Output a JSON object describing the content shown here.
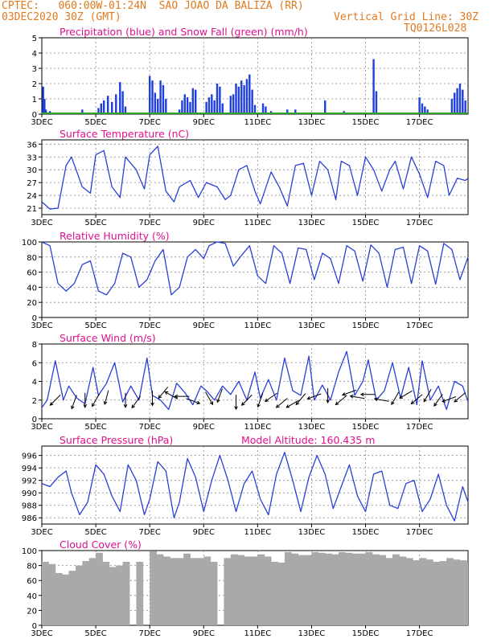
{
  "header": {
    "line1_left": "CPTEC:   060:00W-01:24N  SAO JOAO DA BALIZA (RR)",
    "line2_left": "03DEC2020 30Z (GMT)",
    "line2_right": "Vertical Grid Line: 30Z",
    "line3_right": "TQ0126L028",
    "model_altitude": "Model Altitude: 160.435 m"
  },
  "colors": {
    "header_text": "#e07a1f",
    "panel_title": "#e0108f",
    "precip": "#1f3fdc",
    "snow": "#2aa32a",
    "line": "#2a3fd8",
    "arrow": "#000000",
    "cloud": "#a9a9a9"
  },
  "x_axis": {
    "ticks": [
      "3DEC",
      "5DEC",
      "7DEC",
      "9DEC",
      "11DEC",
      "13DEC",
      "15DEC",
      "17DEC"
    ],
    "tick_days": [
      0,
      2,
      4,
      6,
      8,
      10,
      12,
      14
    ],
    "range_days": [
      0,
      15.8
    ]
  },
  "chart_data": [
    {
      "id": "precip",
      "type": "bar",
      "title": "Precipitation (blue) and Snow Fall (green) (mm/h)",
      "ylim": [
        0,
        5
      ],
      "yticks": [
        0,
        1,
        2,
        3,
        4,
        5
      ],
      "unit": "mm/h",
      "series": [
        {
          "name": "Precipitation",
          "x_days": [
            0.05,
            0.1,
            0.15,
            0.3,
            1.5,
            2.1,
            2.2,
            2.3,
            2.45,
            2.6,
            2.75,
            2.9,
            3.0,
            3.1,
            4.0,
            4.1,
            4.2,
            4.3,
            4.4,
            4.5,
            4.6,
            5.1,
            5.2,
            5.3,
            5.4,
            5.5,
            5.6,
            5.7,
            6.1,
            6.2,
            6.3,
            6.4,
            6.5,
            6.6,
            6.7,
            7.0,
            7.1,
            7.2,
            7.3,
            7.4,
            7.5,
            7.6,
            7.7,
            7.8,
            7.9,
            8.2,
            8.3,
            8.5,
            9.1,
            9.2,
            9.4,
            10.5,
            11.2,
            11.5,
            12.3,
            12.4,
            14.0,
            14.1,
            14.2,
            14.3,
            15.2,
            15.3,
            15.4,
            15.5,
            15.6,
            15.7
          ],
          "values": [
            1.8,
            1.0,
            0.3,
            0.2,
            0.3,
            0.4,
            0.7,
            0.9,
            1.2,
            0.8,
            1.3,
            2.1,
            1.5,
            0.5,
            2.5,
            2.2,
            1.4,
            1.0,
            2.2,
            1.9,
            1.0,
            0.3,
            0.9,
            1.3,
            1.1,
            0.8,
            1.7,
            1.6,
            0.8,
            1.1,
            1.3,
            0.9,
            2.0,
            1.8,
            0.7,
            1.2,
            1.3,
            2.0,
            1.8,
            2.2,
            1.9,
            2.3,
            2.6,
            1.6,
            0.6,
            0.7,
            0.5,
            0.2,
            0.3,
            0.1,
            0.3,
            0.9,
            0.2,
            0.1,
            3.6,
            1.5,
            1.1,
            0.7,
            0.5,
            0.3,
            1.0,
            1.4,
            1.7,
            2.0,
            1.6,
            0.9
          ]
        },
        {
          "name": "Snow Fall",
          "x_days": [
            0,
            15.8
          ],
          "values": [
            0,
            0
          ]
        }
      ]
    },
    {
      "id": "temp",
      "type": "line",
      "title": "Surface Temperature (nC)",
      "ylim": [
        19.5,
        37
      ],
      "yticks": [
        21,
        24,
        27,
        30,
        33,
        36
      ],
      "series": [
        {
          "name": "Surface Temperature",
          "x_days": [
            0,
            0.3,
            0.6,
            0.9,
            1.1,
            1.5,
            1.8,
            2.0,
            2.3,
            2.6,
            2.9,
            3.1,
            3.5,
            3.8,
            4.0,
            4.3,
            4.6,
            4.9,
            5.1,
            5.5,
            5.8,
            6.1,
            6.5,
            6.8,
            7.0,
            7.3,
            7.6,
            7.9,
            8.1,
            8.5,
            8.8,
            9.1,
            9.4,
            9.7,
            10.0,
            10.3,
            10.6,
            10.9,
            11.1,
            11.4,
            11.7,
            12.0,
            12.3,
            12.6,
            12.9,
            13.1,
            13.4,
            13.7,
            14.0,
            14.3,
            14.6,
            14.9,
            15.1,
            15.4,
            15.7,
            15.8
          ],
          "values": [
            22.5,
            20.8,
            21,
            31,
            33,
            26,
            24.5,
            33.5,
            34.5,
            26,
            23.5,
            33,
            30,
            25.5,
            33.5,
            35.5,
            25,
            22.5,
            26,
            27.5,
            23.5,
            27,
            26,
            23,
            24,
            30,
            31,
            25,
            22,
            29.5,
            26,
            21.5,
            31,
            31.5,
            24,
            32,
            30,
            23,
            32,
            31,
            24,
            33,
            30,
            25,
            30,
            32,
            25.5,
            33,
            29,
            23.5,
            32,
            31,
            24,
            28,
            27.5,
            28
          ]
        }
      ]
    },
    {
      "id": "rh",
      "type": "line",
      "title": "Relative Humidity (%)",
      "ylim": [
        0,
        100
      ],
      "yticks": [
        0,
        20,
        40,
        60,
        80,
        100
      ],
      "series": [
        {
          "name": "Relative Humidity",
          "x_days": [
            0,
            0.3,
            0.6,
            0.9,
            1.2,
            1.5,
            1.8,
            2.1,
            2.4,
            2.7,
            3.0,
            3.3,
            3.6,
            3.9,
            4.2,
            4.5,
            4.8,
            5.1,
            5.4,
            5.7,
            6.0,
            6.2,
            6.5,
            6.8,
            7.1,
            7.4,
            7.7,
            8.0,
            8.3,
            8.6,
            8.9,
            9.2,
            9.5,
            9.8,
            10.1,
            10.4,
            10.7,
            11.0,
            11.3,
            11.6,
            11.9,
            12.2,
            12.5,
            12.8,
            13.1,
            13.4,
            13.7,
            14.0,
            14.3,
            14.6,
            14.9,
            15.2,
            15.5,
            15.8
          ],
          "values": [
            100,
            95,
            45,
            35,
            45,
            70,
            75,
            35,
            30,
            45,
            85,
            80,
            40,
            50,
            75,
            90,
            30,
            40,
            80,
            90,
            78,
            95,
            100,
            98,
            68,
            82,
            95,
            55,
            45,
            95,
            85,
            45,
            92,
            90,
            50,
            85,
            78,
            45,
            95,
            88,
            48,
            96,
            85,
            40,
            90,
            93,
            45,
            95,
            88,
            44,
            98,
            90,
            50,
            80
          ]
        }
      ]
    },
    {
      "id": "wind",
      "type": "line",
      "title": "Surface Wind (m/s)",
      "ylim": [
        0,
        8
      ],
      "yticks": [
        0,
        2,
        4,
        6,
        8
      ],
      "series": [
        {
          "name": "Surface Wind",
          "x_days": [
            0,
            0.2,
            0.5,
            0.8,
            1.0,
            1.3,
            1.6,
            1.9,
            2.1,
            2.4,
            2.7,
            3.0,
            3.3,
            3.6,
            3.9,
            4.1,
            4.4,
            4.7,
            5.0,
            5.3,
            5.6,
            5.9,
            6.1,
            6.4,
            6.7,
            7.0,
            7.3,
            7.6,
            7.9,
            8.1,
            8.4,
            8.7,
            9.0,
            9.3,
            9.6,
            9.9,
            10.1,
            10.4,
            10.7,
            11.0,
            11.3,
            11.6,
            11.9,
            12.1,
            12.4,
            12.7,
            13.0,
            13.3,
            13.6,
            13.9,
            14.1,
            14.4,
            14.7,
            15.0,
            15.3,
            15.6,
            15.8
          ],
          "values": [
            1.2,
            2.0,
            6.2,
            2.0,
            3.5,
            2.2,
            1.6,
            5.5,
            2.5,
            3.8,
            6.0,
            1.8,
            3.5,
            2.0,
            6.5,
            2.5,
            2.0,
            1.0,
            3.8,
            2.8,
            1.5,
            3.5,
            3.0,
            2.0,
            3.5,
            2.6,
            4.0,
            2.0,
            5.0,
            2.2,
            4.2,
            2.0,
            6.5,
            3.0,
            2.5,
            6.7,
            2.0,
            3.6,
            2.0,
            5.0,
            7.2,
            2.5,
            4.0,
            6.3,
            2.0,
            3.0,
            6.0,
            2.2,
            5.5,
            1.5,
            6.2,
            2.0,
            3.5,
            1.0,
            4.0,
            3.5,
            1.8
          ]
        }
      ],
      "arrows": {
        "x_days": [
          0.5,
          1.2,
          1.6,
          2.0,
          2.4,
          3.1,
          3.5,
          4.1,
          4.5,
          4.8,
          5.2,
          5.6,
          6.2,
          6.6,
          7.2,
          7.6,
          8.1,
          8.5,
          8.9,
          9.3,
          9.6,
          10.1,
          10.6,
          11.1,
          11.4,
          11.7,
          12.1,
          12.6,
          13.1,
          13.5,
          13.9,
          14.3,
          14.7,
          15.1,
          15.5
        ],
        "y_ms": [
          2.0,
          1.8,
          2.0,
          2.0,
          2.3,
          2.0,
          1.8,
          2.2,
          2.8,
          2.5,
          2.4,
          1.9,
          2.2,
          2.5,
          1.8,
          2.0,
          2.0,
          2.3,
          1.7,
          1.6,
          2.1,
          2.4,
          2.5,
          2.0,
          2.8,
          2.3,
          2.6,
          2.0,
          2.2,
          2.6,
          2.1,
          2.5,
          2.0,
          2.1,
          2.3
        ],
        "dir_deg": [
          225,
          200,
          180,
          210,
          195,
          180,
          215,
          180,
          220,
          300,
          270,
          110,
          150,
          200,
          180,
          225,
          200,
          235,
          230,
          240,
          220,
          250,
          180,
          230,
          250,
          280,
          270,
          280,
          210,
          240,
          230,
          210,
          215,
          250,
          230
        ]
      }
    },
    {
      "id": "pressure",
      "type": "line",
      "title": "Surface Pressure (hPa)",
      "ylim": [
        985,
        997.5
      ],
      "yticks": [
        986,
        988,
        990,
        992,
        994,
        996
      ],
      "series": [
        {
          "name": "Surface Pressure",
          "x_days": [
            0,
            0.3,
            0.6,
            0.9,
            1.1,
            1.4,
            1.7,
            2.0,
            2.3,
            2.6,
            2.9,
            3.2,
            3.5,
            3.8,
            4.0,
            4.3,
            4.6,
            4.9,
            5.1,
            5.4,
            5.7,
            6.0,
            6.3,
            6.6,
            6.9,
            7.2,
            7.5,
            7.8,
            8.1,
            8.4,
            8.7,
            9.0,
            9.3,
            9.6,
            9.9,
            10.2,
            10.5,
            10.8,
            11.1,
            11.4,
            11.7,
            12.0,
            12.3,
            12.6,
            12.9,
            13.2,
            13.5,
            13.8,
            14.1,
            14.4,
            14.7,
            15.0,
            15.3,
            15.6,
            15.8
          ],
          "values": [
            991.5,
            991,
            992.5,
            993.5,
            990,
            986.5,
            988.5,
            994.5,
            993,
            989.5,
            987,
            994.5,
            992,
            986.5,
            989,
            995,
            993.5,
            986,
            988.5,
            995.5,
            992.5,
            987,
            992,
            996,
            992,
            987,
            991.5,
            993.5,
            989,
            986.5,
            993,
            996.5,
            992,
            987,
            992.5,
            996,
            993,
            987.5,
            991,
            994.5,
            989.5,
            987,
            993,
            993.5,
            988,
            987.5,
            991.5,
            992,
            987,
            989,
            993,
            988,
            985.5,
            991,
            988.5
          ]
        }
      ]
    },
    {
      "id": "cloud",
      "type": "bar",
      "title": "Cloud Cover (%)",
      "ylim": [
        0,
        100
      ],
      "yticks": [
        0,
        20,
        40,
        60,
        80,
        100
      ],
      "series": [
        {
          "name": "Cloud Cover",
          "x_days": [
            0,
            0.25,
            0.5,
            0.75,
            1.0,
            1.25,
            1.5,
            1.75,
            2.0,
            2.25,
            2.5,
            2.75,
            3.0,
            3.25,
            3.5,
            3.75,
            4.0,
            4.25,
            4.5,
            4.75,
            5.0,
            5.25,
            5.5,
            5.75,
            6.0,
            6.25,
            6.5,
            6.75,
            7.0,
            7.25,
            7.5,
            7.75,
            8.0,
            8.25,
            8.5,
            8.75,
            9.0,
            9.25,
            9.5,
            9.75,
            10.0,
            10.25,
            10.5,
            10.75,
            11.0,
            11.25,
            11.5,
            11.75,
            12.0,
            12.25,
            12.5,
            12.75,
            13.0,
            13.25,
            13.5,
            13.75,
            14.0,
            14.25,
            14.5,
            14.75,
            15.0,
            15.25,
            15.5,
            15.75
          ],
          "values": [
            85,
            82,
            70,
            68,
            73,
            80,
            86,
            90,
            97,
            85,
            78,
            80,
            85,
            0,
            85,
            0,
            99,
            95,
            92,
            90,
            90,
            96,
            90,
            90,
            92,
            85,
            0,
            90,
            95,
            94,
            92,
            92,
            95,
            92,
            85,
            84,
            98,
            96,
            94,
            94,
            98,
            97,
            96,
            95,
            98,
            97,
            96,
            96,
            98,
            95,
            94,
            90,
            95,
            92,
            90,
            87,
            90,
            88,
            85,
            86,
            90,
            88,
            87,
            84
          ]
        }
      ]
    }
  ]
}
